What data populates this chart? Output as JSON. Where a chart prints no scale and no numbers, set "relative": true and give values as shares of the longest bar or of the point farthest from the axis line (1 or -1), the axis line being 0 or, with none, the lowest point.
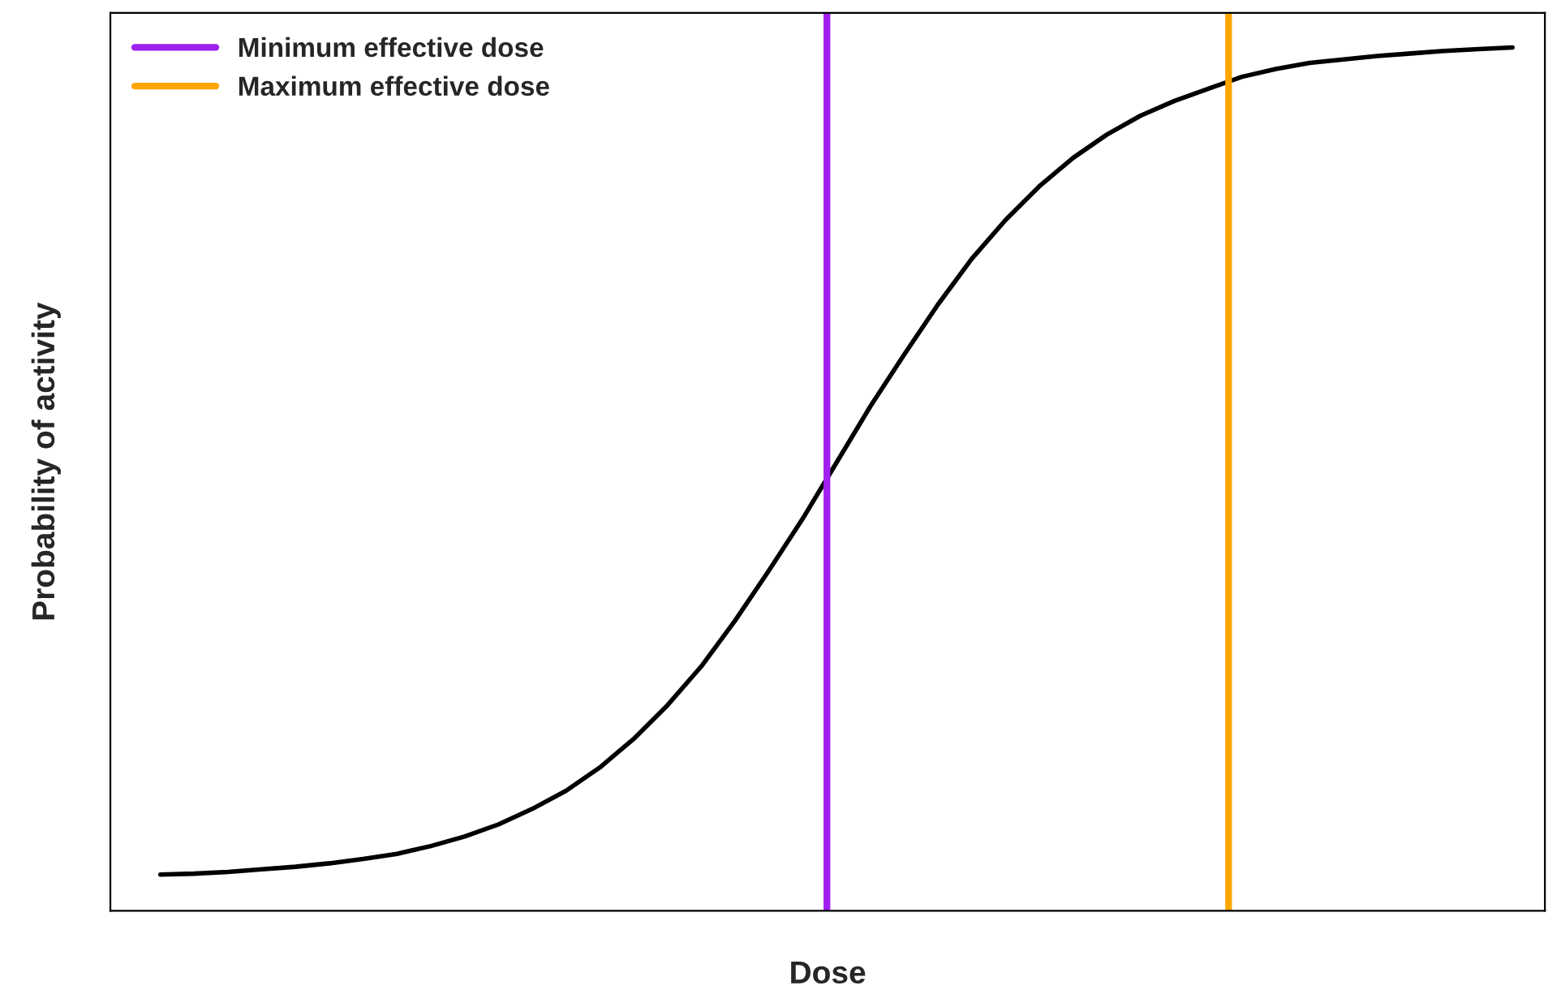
{
  "chart_data": {
    "type": "line",
    "xlabel": "Dose",
    "ylabel": "Probability of activity",
    "relative": true,
    "categories": [
      null,
      null,
      null,
      null,
      null,
      null,
      null,
      null,
      null,
      null,
      null,
      null,
      null,
      null,
      null,
      null,
      null,
      null,
      null,
      null,
      null,
      null,
      null,
      null,
      null,
      null,
      null,
      null,
      null,
      null,
      null,
      null,
      null,
      null,
      null,
      null,
      null,
      null,
      null,
      null,
      null
    ],
    "series": [
      {
        "color": "#000000",
        "values": [
          0.042,
          0.043,
          0.045,
          0.048,
          0.051,
          0.055,
          0.06,
          0.066,
          0.075,
          0.086,
          0.1,
          0.118,
          0.139,
          0.166,
          0.199,
          0.238,
          0.283,
          0.336,
          0.394,
          0.454,
          0.519,
          0.584,
          0.644,
          0.702,
          0.755,
          0.8,
          0.839,
          0.872,
          0.899,
          0.921,
          0.938,
          0.952,
          0.966,
          0.975,
          0.982,
          0.986,
          0.99,
          0.993,
          0.996,
          0.998,
          1.0
        ]
      }
    ],
    "ref_lines": [
      {
        "axis": "x",
        "label": "Minimum effective dose",
        "color": "#a020f0"
      },
      {
        "axis": "x",
        "label": "Maximum effective dose",
        "color": "#ffa500"
      }
    ],
    "line_style": "solid",
    "marker": "none"
  }
}
